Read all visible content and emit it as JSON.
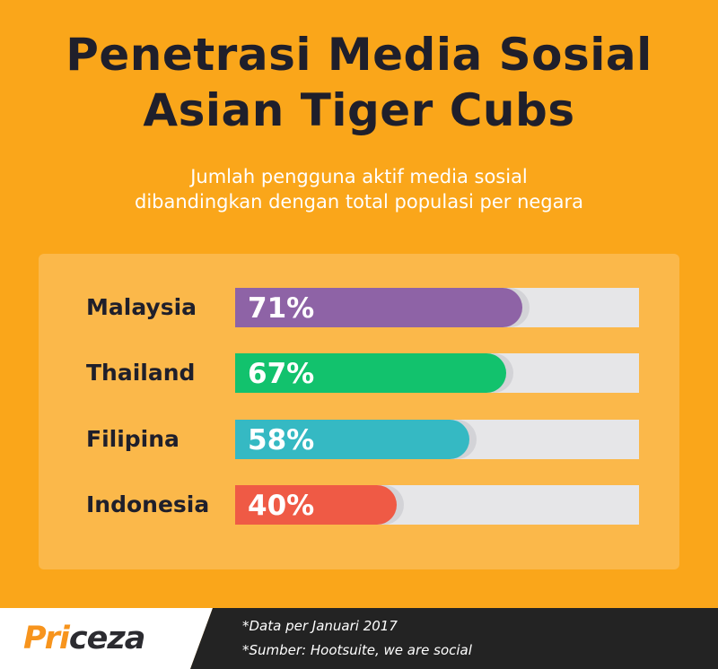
{
  "title_lines": [
    "Penetrasi Media Sosial",
    "Asian Tiger Cubs"
  ],
  "subtitle_lines": [
    "Jumlah pengguna aktif media sosial",
    "dibandingkan dengan total populasi per negara"
  ],
  "chart_data": {
    "type": "bar",
    "orientation": "horizontal",
    "categories": [
      "Malaysia",
      "Thailand",
      "Filipina",
      "Indonesia"
    ],
    "values": [
      71,
      67,
      58,
      40
    ],
    "value_labels": [
      "71%",
      "67%",
      "58%",
      "40%"
    ],
    "xlim": [
      0,
      100
    ],
    "colors": [
      "#8E63A6",
      "#12C26D",
      "#35B9C3",
      "#EF5A45"
    ],
    "grid": false
  },
  "footer": {
    "logo_part1": "Pri",
    "logo_part2": "ceza",
    "note_date": "*Data per Januari 2017",
    "note_source": "*Sumber: Hootsuite, we are social"
  },
  "colors": {
    "background": "#FAA61A",
    "panel": "#FBB84A",
    "track": "#E6E6E8",
    "title": "#1F1F2B",
    "footer_dark": "#232323"
  }
}
